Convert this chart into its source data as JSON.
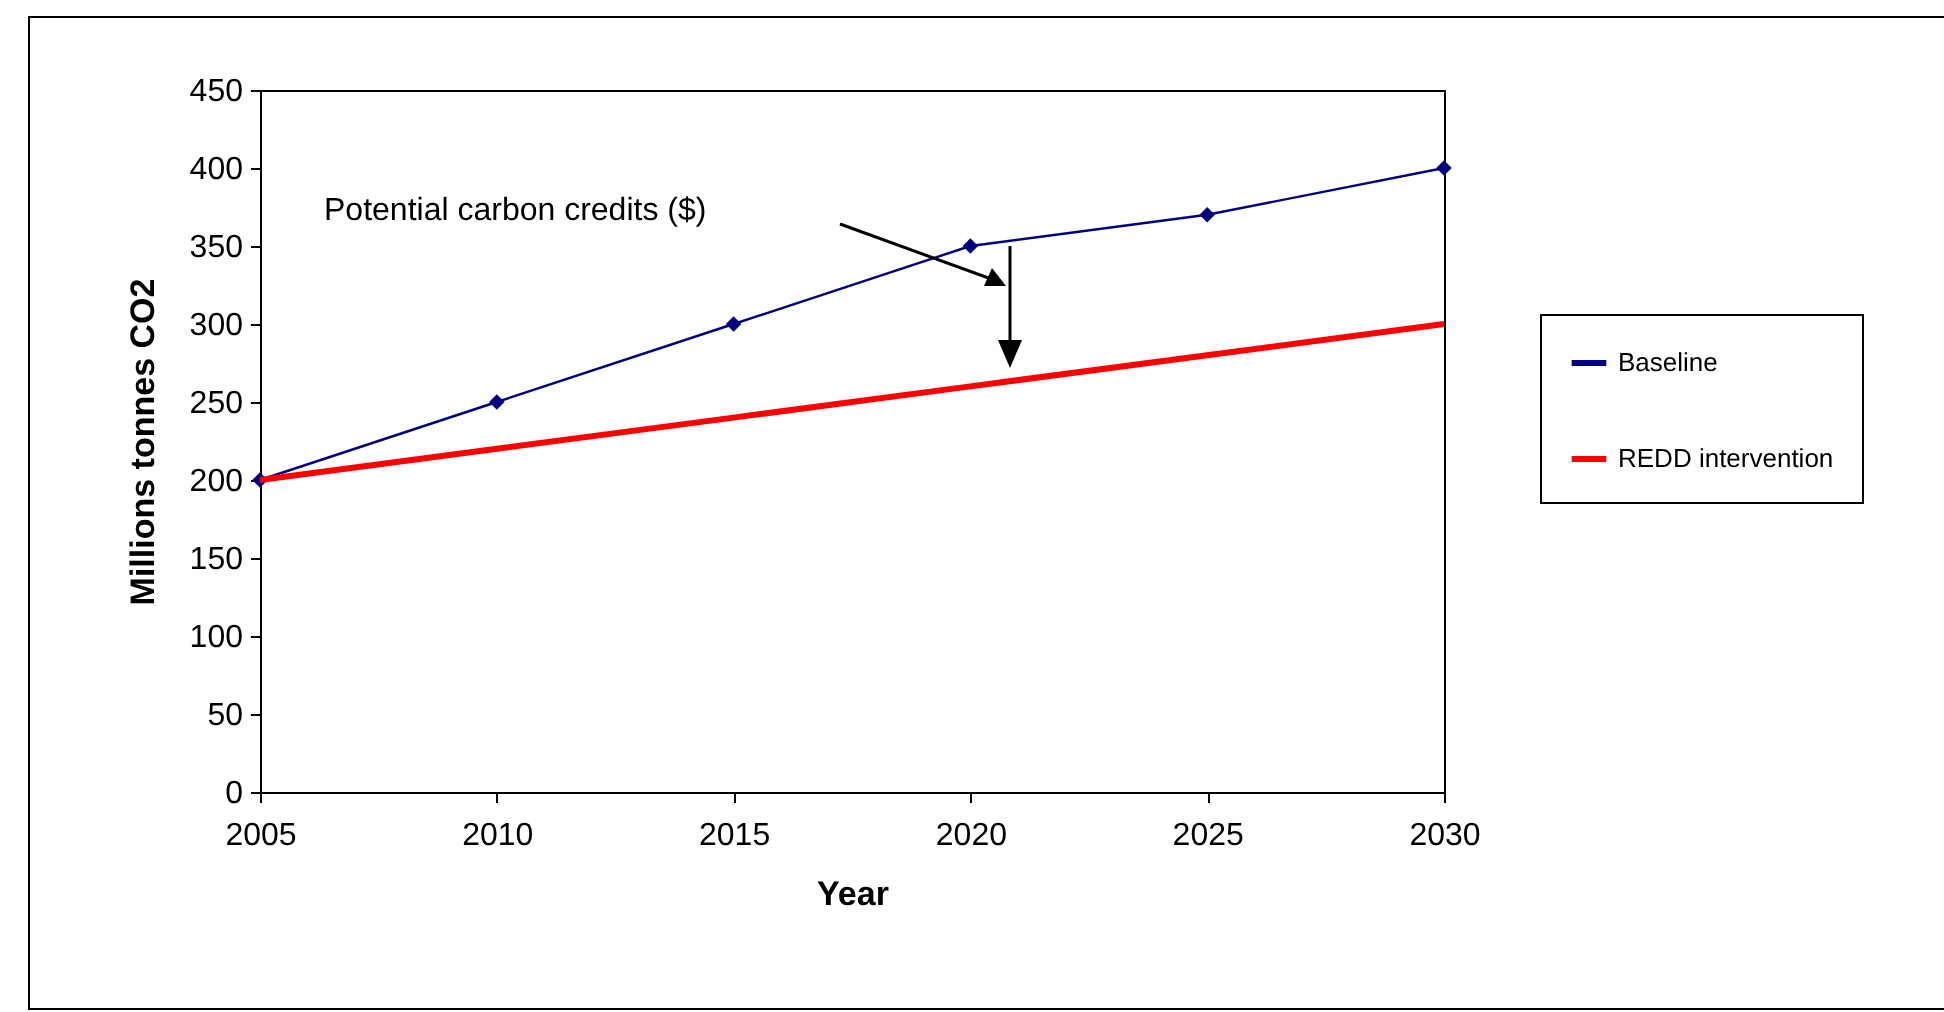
{
  "chart_data": {
    "type": "line",
    "xlabel": "Year",
    "ylabel": "Millions tonnes CO2",
    "x": [
      2005,
      2010,
      2015,
      2020,
      2025,
      2030
    ],
    "series": [
      {
        "name": "Baseline",
        "color": "#000080",
        "values": [
          200,
          250,
          300,
          350,
          370,
          400
        ],
        "marker": "diamond"
      },
      {
        "name": "REDD intervention",
        "color": "#ff0000",
        "values": [
          200,
          220,
          240,
          260,
          280,
          300
        ]
      }
    ],
    "xlim": [
      2005,
      2030
    ],
    "xticks": [
      2005,
      2010,
      2015,
      2020,
      2025,
      2030
    ],
    "ylim": [
      0,
      450
    ],
    "yticks": [
      0,
      50,
      100,
      150,
      200,
      250,
      300,
      350,
      400,
      450
    ],
    "annotations": [
      "Potential carbon credits ($)"
    ],
    "grid": false,
    "legend": "right"
  }
}
